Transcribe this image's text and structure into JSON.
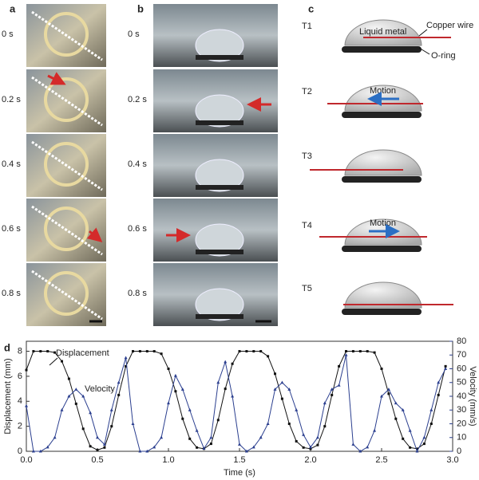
{
  "panel_a": {
    "label": "a",
    "times": [
      "0 s",
      "0.2 s",
      "0.4 s",
      "0.6 s",
      "0.8 s"
    ]
  },
  "panel_b": {
    "label": "b",
    "times": [
      "0 s",
      "0.2 s",
      "0.4 s",
      "0.6 s",
      "0.8 s"
    ]
  },
  "panel_c": {
    "label": "c",
    "steps": [
      "T1",
      "T2",
      "T3",
      "T4",
      "T5"
    ],
    "liquid_metal": "Liquid metal",
    "copper_wire": "Copper wire",
    "o_ring": "O-ring",
    "motion": "Motion"
  },
  "chart_data": {
    "type": "line",
    "panel_label": "d",
    "xlabel": "Time (s)",
    "ylabel": "Displacement (mm)",
    "y2label": "Velocity (mm/s)",
    "annotations": [
      "Displacement",
      "Velocity"
    ],
    "x": [
      0,
      0.05,
      0.1,
      0.15,
      0.2,
      0.25,
      0.3,
      0.35,
      0.4,
      0.45,
      0.5,
      0.55,
      0.6,
      0.65,
      0.7,
      0.75,
      0.8,
      0.85,
      0.9,
      0.95,
      1.0,
      1.05,
      1.1,
      1.15,
      1.2,
      1.25,
      1.3,
      1.35,
      1.4,
      1.45,
      1.5,
      1.55,
      1.6,
      1.65,
      1.7,
      1.75,
      1.8,
      1.85,
      1.9,
      1.95,
      2.0,
      2.05,
      2.1,
      2.15,
      2.2,
      2.25,
      2.3,
      2.35,
      2.4,
      2.45,
      2.5,
      2.55,
      2.6,
      2.65,
      2.7,
      2.75,
      2.8,
      2.85,
      2.9,
      2.95
    ],
    "series": [
      {
        "name": "Displacement",
        "color": "#111111",
        "values": [
          6.5,
          8,
          8,
          8,
          7.9,
          7.2,
          5.8,
          3.8,
          1.8,
          0.4,
          0.1,
          0.3,
          2,
          4.5,
          6.8,
          8,
          8,
          8,
          8,
          7.8,
          6.6,
          4.8,
          2.6,
          1,
          0.3,
          0.2,
          0.6,
          2.5,
          5,
          7,
          8,
          8,
          8,
          8,
          7.6,
          6.2,
          4.2,
          2.2,
          0.8,
          0.3,
          0.2,
          0.5,
          2,
          4.5,
          6.8,
          8,
          8,
          8,
          8,
          7.9,
          6.6,
          4.6,
          2.6,
          1,
          0.3,
          0.2,
          0.6,
          2.2,
          4.5,
          6.8
        ]
      },
      {
        "name": "Velocity",
        "color": "#2b3f8f",
        "axis": "y2",
        "values": [
          33,
          0,
          0,
          3,
          10,
          30,
          40,
          45,
          40,
          28,
          10,
          5,
          30,
          50,
          68,
          20,
          0,
          0,
          3,
          10,
          35,
          55,
          45,
          30,
          15,
          2,
          10,
          50,
          65,
          40,
          5,
          0,
          3,
          10,
          20,
          45,
          50,
          45,
          30,
          12,
          3,
          10,
          35,
          45,
          48,
          70,
          5,
          0,
          3,
          15,
          40,
          45,
          35,
          30,
          15,
          0,
          10,
          30,
          50,
          60
        ]
      }
    ],
    "xlim": [
      0,
      3
    ],
    "xticks": [
      {
        "value": 0,
        "label": "0.0"
      },
      0.5,
      {
        "value": 1,
        "label": "1.0"
      },
      1.5,
      {
        "value": 2,
        "label": "2.0"
      },
      2.5,
      {
        "value": 3,
        "label": "3.0"
      }
    ],
    "ylim": [
      0,
      8.8
    ],
    "yticks": [
      0,
      2,
      4,
      6,
      8
    ],
    "y2lim": [
      0,
      80
    ],
    "y2ticks": [
      0,
      10,
      20,
      30,
      40,
      50,
      60,
      70,
      80
    ]
  }
}
